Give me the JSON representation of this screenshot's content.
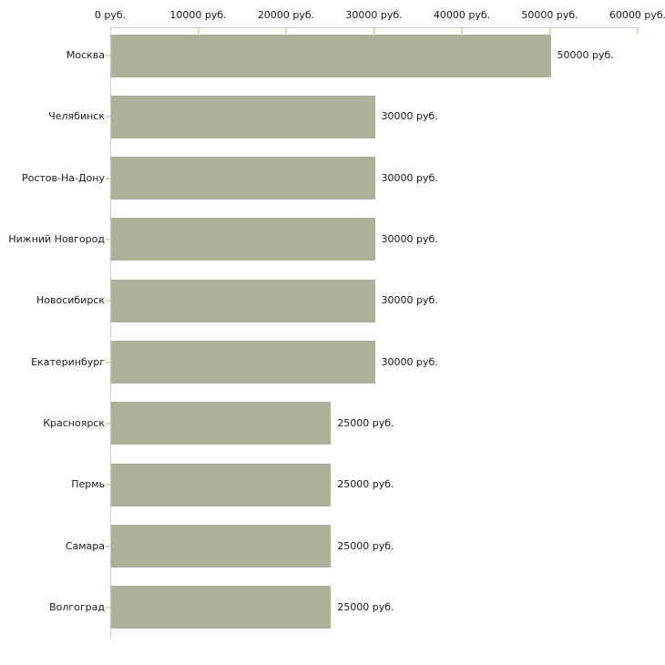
{
  "chart_data": {
    "type": "bar",
    "orientation": "horizontal",
    "title": "",
    "xlabel": "",
    "ylabel": "",
    "unit": "руб.",
    "categories": [
      "Москва",
      "Челябинск",
      "Ростов-На-Дону",
      "Нижний Новгород",
      "Новосибирск",
      "Екатеринбург",
      "Красноярск",
      "Пермь",
      "Самара",
      "Волгоград"
    ],
    "values": [
      50000,
      30000,
      30000,
      30000,
      30000,
      30000,
      25000,
      25000,
      25000,
      25000
    ],
    "value_labels": [
      "50000 руб.",
      "30000 руб.",
      "30000 руб.",
      "30000 руб.",
      "30000 руб.",
      "30000 руб.",
      "25000 руб.",
      "25000 руб.",
      "25000 руб.",
      "25000 руб."
    ],
    "xlim": [
      0,
      60000
    ],
    "x_tick_values": [
      0,
      10000,
      20000,
      30000,
      40000,
      50000,
      60000
    ],
    "x_tick_labels": [
      "0 руб.",
      "10000 руб.",
      "20000 руб.",
      "30000 руб.",
      "40000 руб.",
      "50000 руб.",
      "60000 руб."
    ],
    "grid": false,
    "legend": false,
    "colors": {
      "bar": "#acb29a",
      "axis": "#cccccc",
      "tick": "#d8dcba",
      "text": "#1a1a1a",
      "background": "#ffffff"
    }
  }
}
